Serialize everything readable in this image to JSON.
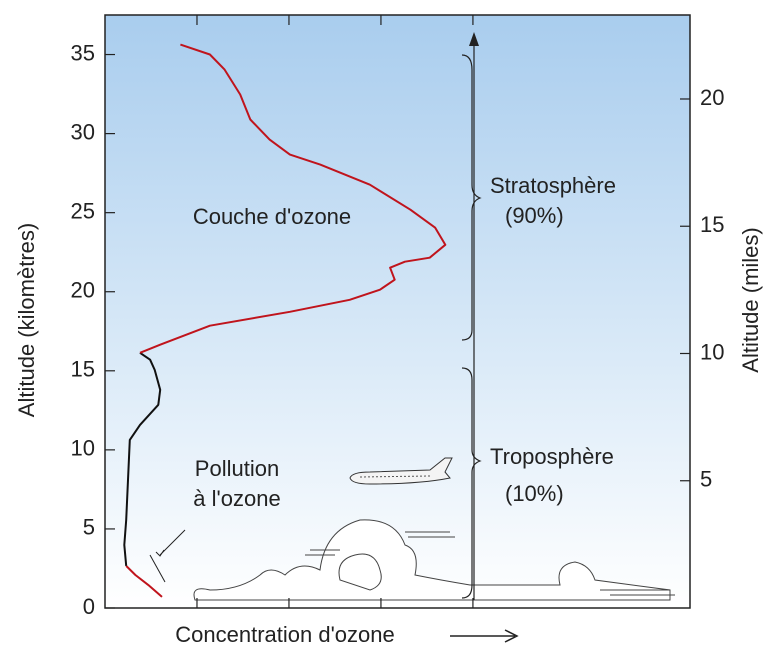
{
  "chart_data": {
    "type": "line",
    "ylabel": "Altitude (kilomètres)",
    "y2label": "Altitude (miles)",
    "xlabel": "Concentration d'ozone",
    "xlim": [
      0,
      6.36
    ],
    "xticks": [
      1,
      2,
      3,
      4
    ],
    "ylim": [
      0,
      37.5
    ],
    "yticks": [
      0,
      5,
      10,
      15,
      20,
      25,
      30,
      35
    ],
    "y2lim": [
      0,
      23.3
    ],
    "y2ticks": [
      5,
      10,
      15,
      20
    ],
    "series": [
      {
        "color": "#c0141c",
        "x": [
          0.62,
          0.47,
          0.33,
          0.23
        ],
        "values": [
          0.7,
          1.46,
          2.09,
          2.66
        ]
      },
      {
        "color": "#111111",
        "x": [
          0.23,
          0.21,
          0.23,
          0.25,
          0.27,
          0.38,
          0.58,
          0.6,
          0.54,
          0.49,
          0.38
        ],
        "values": [
          2.66,
          3.99,
          5.57,
          8.1,
          10.63,
          11.58,
          12.85,
          13.8,
          15.06,
          15.7,
          16.14
        ]
      },
      {
        "color": "#c0141c",
        "x": [
          0.38,
          0.6,
          1.14,
          2.01,
          2.66,
          2.99,
          3.15,
          3.1,
          3.26,
          3.53,
          3.7,
          3.59,
          3.32,
          2.88,
          2.34,
          2.01,
          1.79,
          1.58,
          1.47,
          1.3,
          1.14,
          0.82
        ],
        "values": [
          16.14,
          16.65,
          17.85,
          18.73,
          19.49,
          20.13,
          20.76,
          21.52,
          21.9,
          22.15,
          22.97,
          24.05,
          25.19,
          26.77,
          28.04,
          28.67,
          29.62,
          30.89,
          32.47,
          34.05,
          35.0,
          35.63
        ]
      }
    ],
    "annotations": [
      "Couche d'ozone",
      "Pollution",
      "à l'ozone",
      "Stratosphère",
      "(90%)",
      "Troposphère",
      "(10%)"
    ]
  }
}
